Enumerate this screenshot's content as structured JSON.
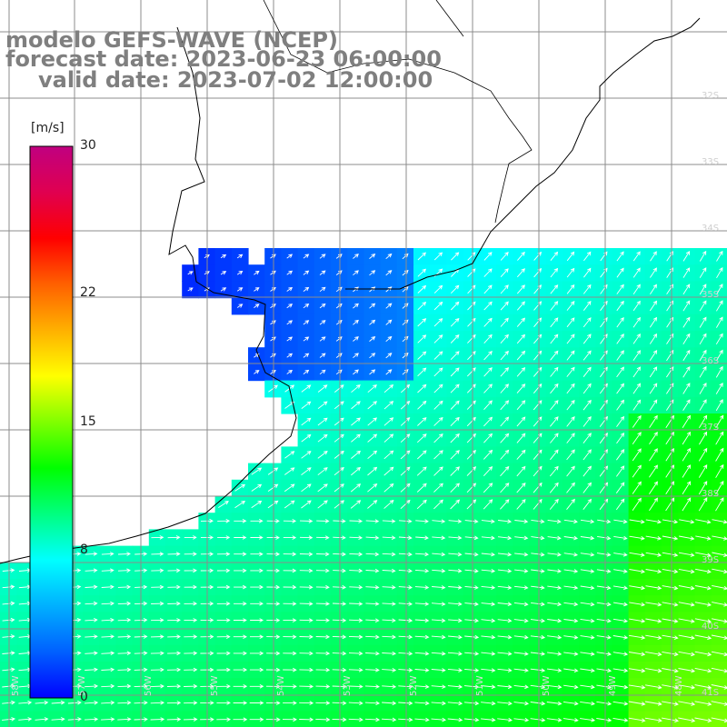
{
  "title": {
    "line1": "modelo GEFS-WAVE (NCEP)",
    "line2": "forecast date: 2023-06-23 06:00:00",
    "line3": "valid date: 2023-07-02 12:00:00"
  },
  "colorbar": {
    "unit": "[m/s]",
    "ticks": [
      "30",
      "22",
      "15",
      "8",
      "0"
    ],
    "tick_values": [
      30,
      22,
      15,
      8,
      0
    ],
    "range": [
      0,
      30
    ],
    "colors": [
      "#0000ff",
      "#0060ff",
      "#00b0ff",
      "#00ffff",
      "#00ff80",
      "#00ff00",
      "#80ff00",
      "#ffff00",
      "#ffb000",
      "#ff6000",
      "#ff0000",
      "#e00050",
      "#c00080"
    ]
  },
  "grid": {
    "lat_labels": [
      "32S",
      "33S",
      "34S",
      "35S",
      "36S",
      "37S",
      "38S",
      "39S",
      "40S",
      "41S"
    ],
    "lon_labels": [
      "58W",
      "57W",
      "56W",
      "55W",
      "54W",
      "53W",
      "52W",
      "51W",
      "50W",
      "49W",
      "48W"
    ]
  },
  "field": {
    "variable": "wind speed and direction",
    "land_color": "#ffffff",
    "coast_color": "#000000",
    "grid_color": "#8c8c8c",
    "arrow_color": "#ffffff"
  }
}
